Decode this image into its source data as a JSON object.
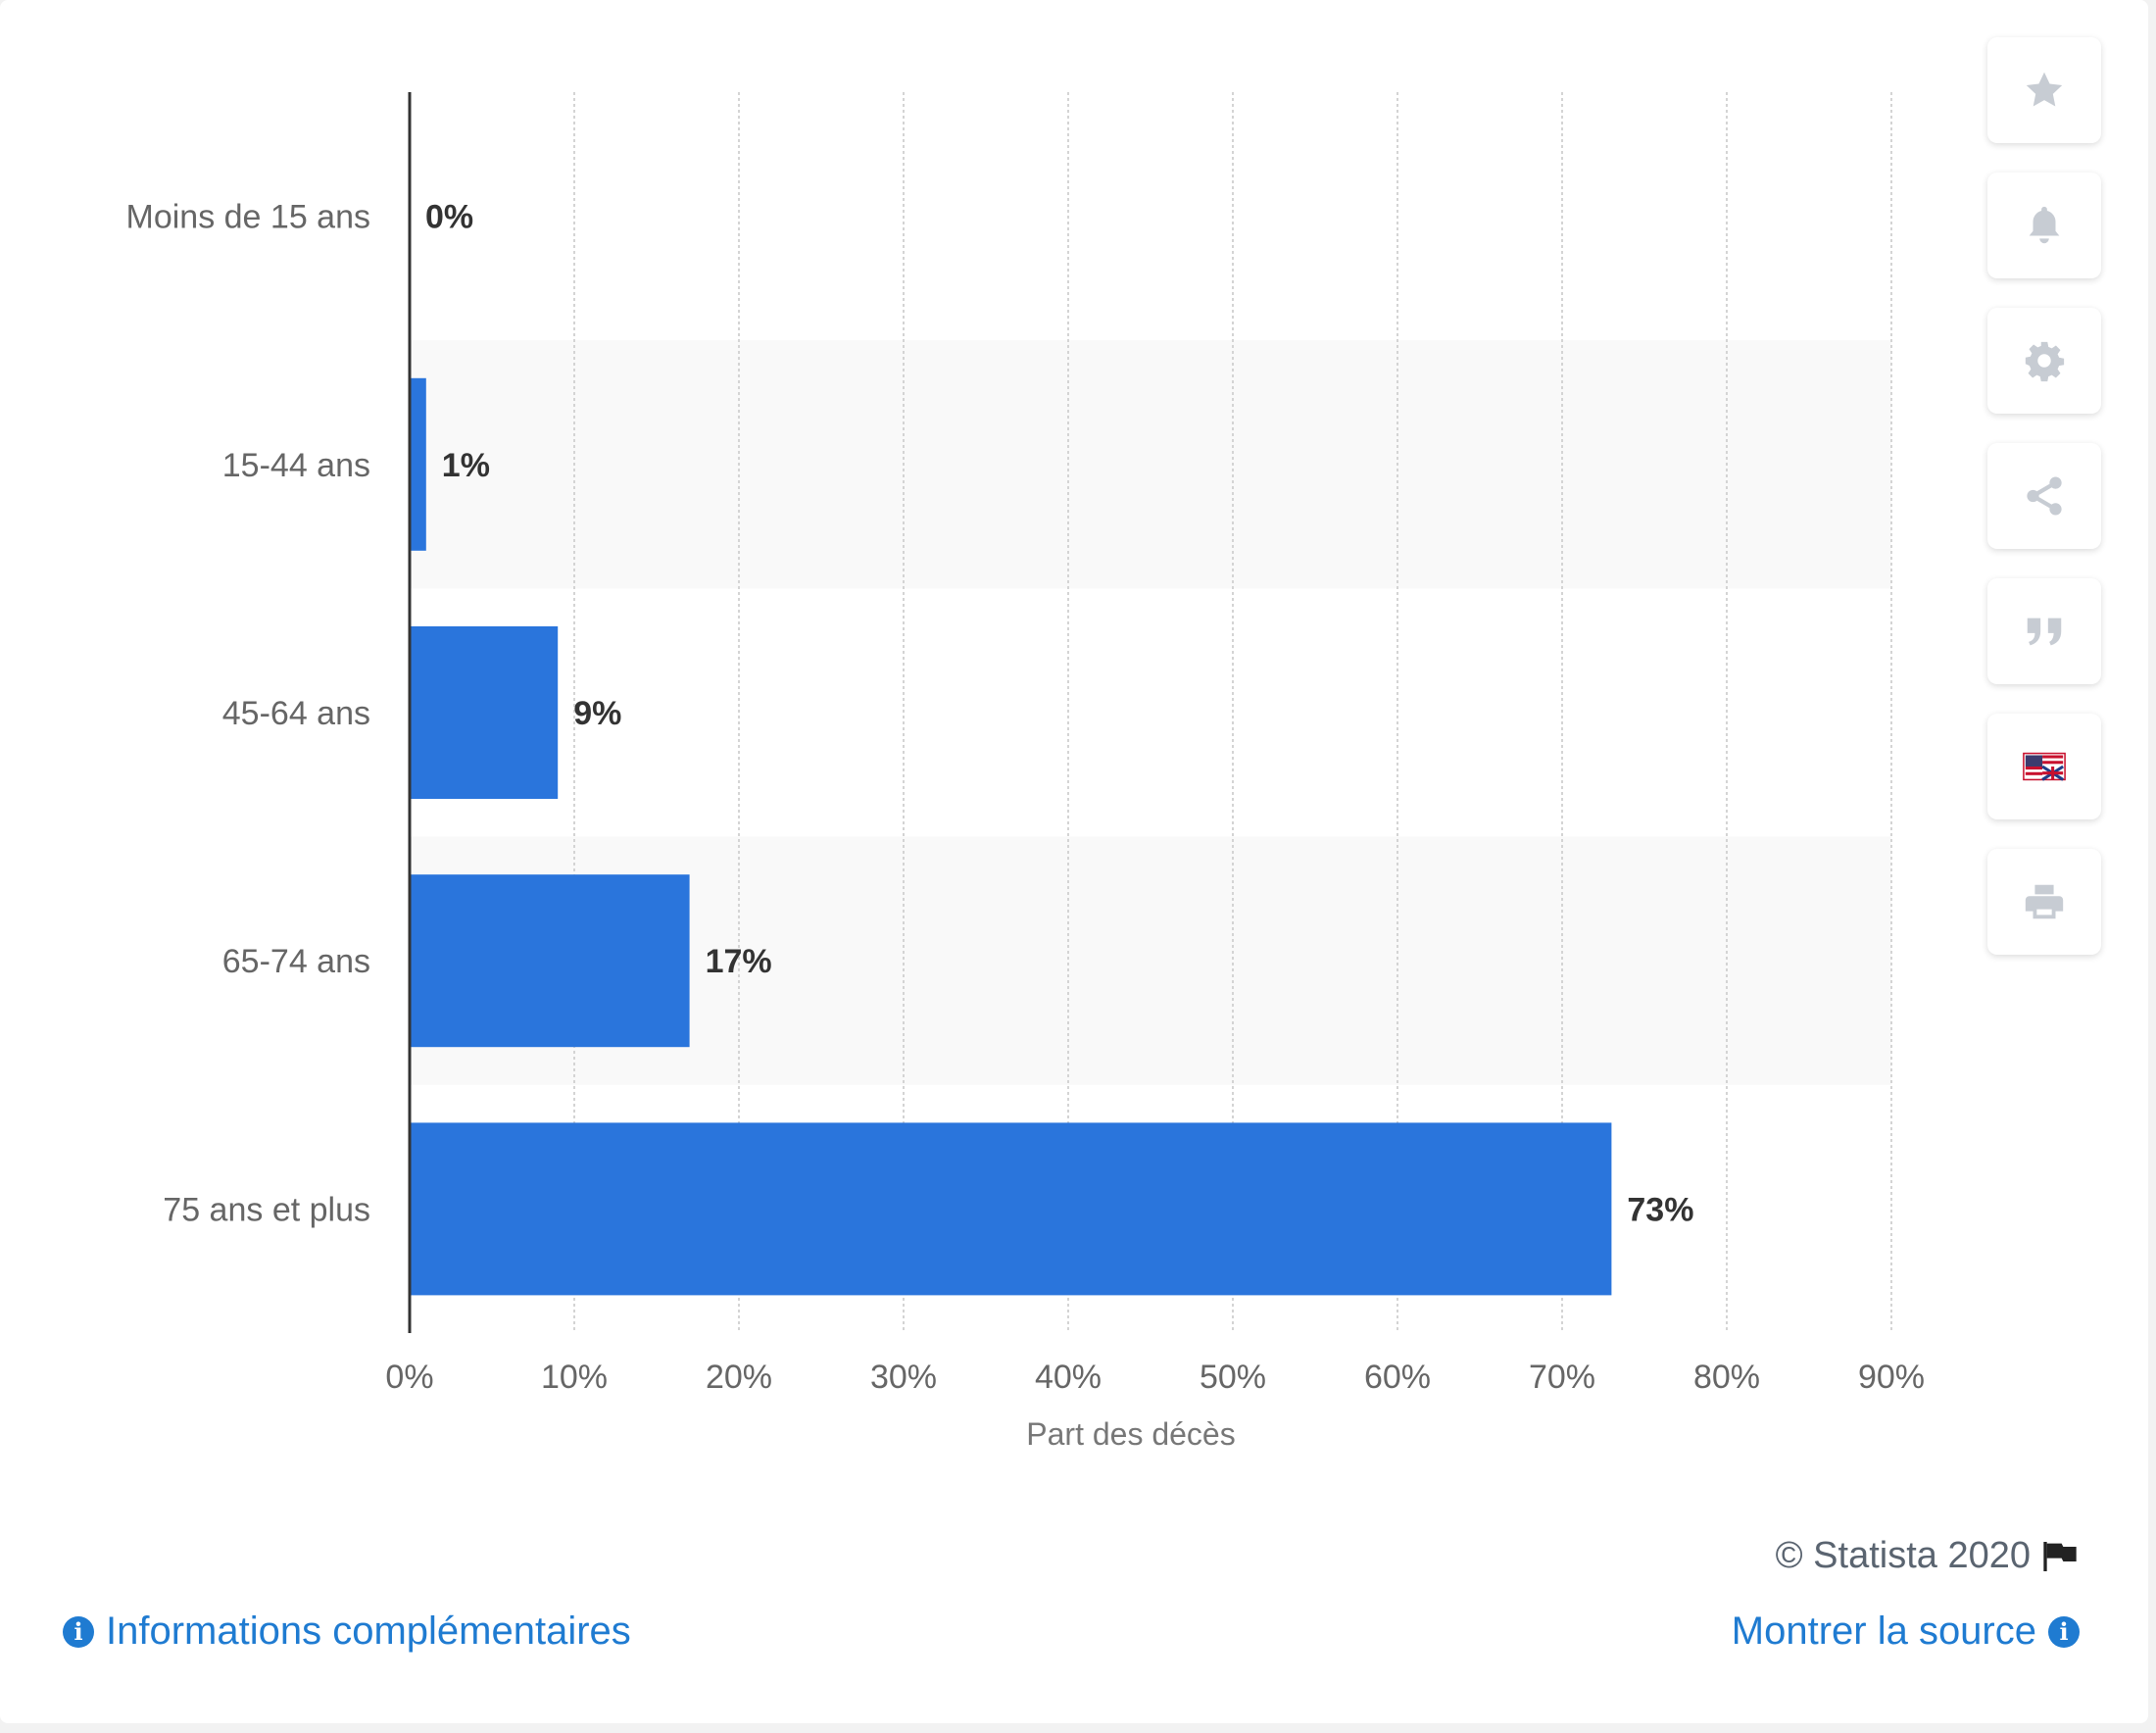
{
  "chart_data": {
    "type": "bar",
    "orientation": "horizontal",
    "categories": [
      "Moins de 15 ans",
      "15-44 ans",
      "45-64 ans",
      "65-74 ans",
      "75 ans et plus"
    ],
    "values": [
      0,
      1,
      9,
      17,
      73
    ],
    "value_labels": [
      "0%",
      "1%",
      "9%",
      "17%",
      "73%"
    ],
    "xlabel": "Part des décès",
    "ylabel": "",
    "xlim": [
      0,
      90
    ],
    "ticks": [
      0,
      10,
      20,
      30,
      40,
      50,
      60,
      70,
      80,
      90
    ],
    "tick_labels": [
      "0%",
      "10%",
      "20%",
      "30%",
      "40%",
      "50%",
      "60%",
      "70%",
      "80%",
      "90%"
    ],
    "grid": true,
    "bar_color": "#2a75dc"
  },
  "toolbar": {
    "buttons": [
      {
        "name": "favorite-button",
        "icon": "star-icon"
      },
      {
        "name": "notification-button",
        "icon": "bell-icon"
      },
      {
        "name": "settings-button",
        "icon": "gear-icon"
      },
      {
        "name": "share-button",
        "icon": "share-icon"
      },
      {
        "name": "cite-button",
        "icon": "quote-icon"
      },
      {
        "name": "language-button",
        "icon": "flag-icon"
      },
      {
        "name": "print-button",
        "icon": "print-icon"
      }
    ]
  },
  "footer": {
    "copyright": "© Statista 2020",
    "more_info": "Informations complémentaires",
    "show_source": "Montrer la source"
  },
  "colors": {
    "bar": "#2a75dc",
    "link": "#1f7bd1",
    "band": "#f9f9f9"
  }
}
